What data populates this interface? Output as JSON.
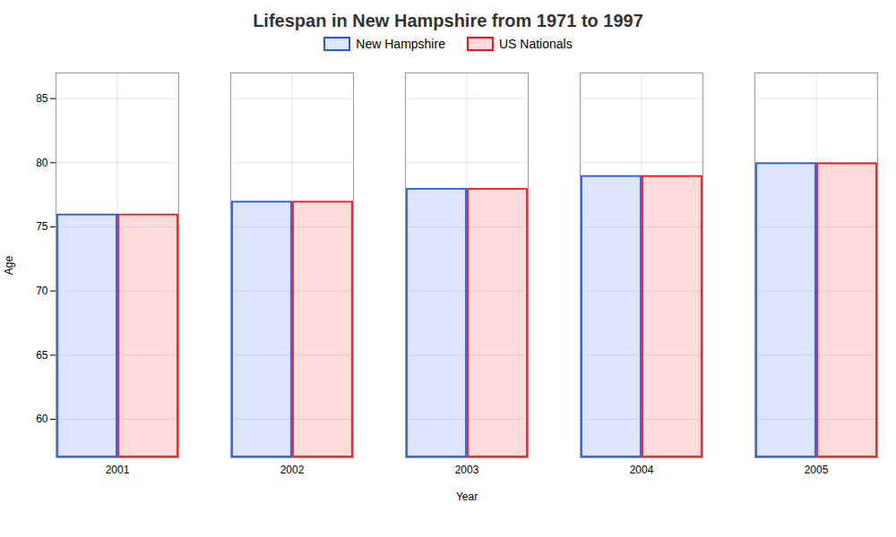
{
  "chart_data": {
    "type": "bar",
    "title": "Lifespan in New Hampshire from 1971 to 1997",
    "xlabel": "Year",
    "ylabel": "Age",
    "categories": [
      "2001",
      "2002",
      "2003",
      "2004",
      "2005"
    ],
    "series": [
      {
        "name": "New Hampshire",
        "color": "#2255ff",
        "values": [
          76,
          77,
          78,
          79,
          80
        ]
      },
      {
        "name": "US Nationals",
        "color": "#ff1111",
        "values": [
          76,
          77,
          78,
          79,
          80
        ]
      }
    ],
    "ylim": [
      57,
      87
    ],
    "yticks": [
      60,
      65,
      70,
      75,
      80,
      85
    ],
    "grid": true,
    "legend": "upper center"
  }
}
